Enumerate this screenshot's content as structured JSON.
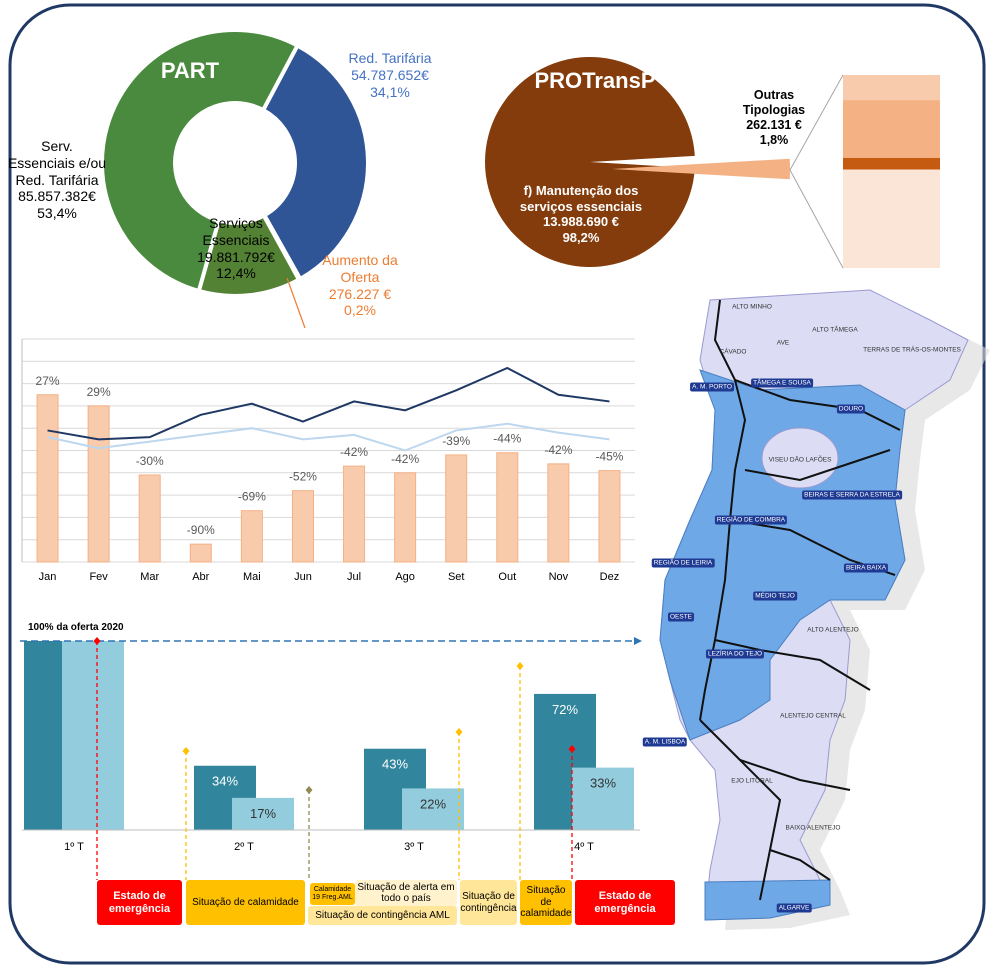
{
  "chart_data": [
    {
      "type": "donut",
      "title": "PART",
      "categories": [
        "Red. Tarifária",
        "Aumento da Oferta",
        "Serviços Essenciais",
        "Serv. Essenciais e/ou Red. Tarifária"
      ],
      "values": [
        54787652,
        276227,
        19881792,
        85857382
      ],
      "value_labels": [
        "54.787.652€",
        "276.227 €",
        "19.881.792€",
        "85.857.382€"
      ],
      "shares": [
        34.1,
        0.2,
        12.4,
        53.4
      ],
      "share_labels": [
        "34,1%",
        "0,2%",
        "12,4%",
        "53,4%"
      ],
      "colors": [
        "#2f5597",
        "#f4b183",
        "#548235",
        "#4a8a3e"
      ],
      "label_colors": [
        "#4472c4",
        "#ed7d31",
        "#000000",
        "#000000"
      ]
    },
    {
      "type": "pie",
      "title": "PROTransP",
      "categories": [
        "f) Manutenção dos serviços essenciais",
        "Outras Tipologias"
      ],
      "values": [
        13988690,
        262131
      ],
      "value_labels": [
        "13.988.690 €",
        "262.131 €"
      ],
      "shares": [
        98.2,
        1.8
      ],
      "share_labels": [
        "98,2%",
        "1,8%"
      ],
      "colors": [
        "#843c0c",
        "#f4b183"
      ],
      "breakdown": {
        "values": [
          13,
          30,
          6,
          51
        ],
        "colors": [
          "#f8cbad",
          "#f4b183",
          "#c55a11",
          "#fbe5d6"
        ]
      }
    },
    {
      "type": "bar",
      "categories": [
        "Jan",
        "Fev",
        "Mar",
        "Abr",
        "Mai",
        "Jun",
        "Jul",
        "Ago",
        "Set",
        "Out",
        "Nov",
        "Dez"
      ],
      "values": [
        75,
        70,
        39,
        8,
        23,
        32,
        43,
        40,
        48,
        49,
        44,
        41
      ],
      "color": "#f8cbad",
      "edge_color": "#f4b183",
      "changes": [
        27,
        29,
        -30,
        -90,
        -69,
        -52,
        -42,
        -42,
        -39,
        -44,
        -42,
        -45
      ],
      "change_labels": [
        "27%",
        "29%",
        "-30%",
        "-90%",
        "-69%",
        "-52%",
        "-42%",
        "-42%",
        "-39%",
        "-44%",
        "-42%",
        "-45%"
      ],
      "series": [
        {
          "color": "#1f3864",
          "values": [
            59,
            55,
            56,
            66,
            71,
            63,
            72,
            68,
            77,
            87,
            75,
            72
          ]
        },
        {
          "color": "#bdd7ee",
          "values": [
            56,
            51,
            54,
            57,
            60,
            55,
            57,
            50,
            59,
            62,
            58,
            55
          ]
        }
      ],
      "ylim": [
        0,
        100
      ],
      "yticks": [
        0,
        10,
        20,
        30,
        40,
        50,
        60,
        70,
        80,
        90,
        100
      ],
      "grid": true
    },
    {
      "type": "grouped_bar",
      "annotation": "100% da oferta 2020",
      "categories": [
        "1º T",
        "2º T",
        "3º T",
        "4º T"
      ],
      "series": [
        {
          "color": "#31859c",
          "values": [
            100,
            34,
            43,
            72
          ],
          "value_labels": [
            null,
            "34%",
            "43%",
            "72%"
          ]
        },
        {
          "color": "#93cddd",
          "values": [
            100,
            17,
            22,
            33
          ],
          "value_labels": [
            null,
            "17%",
            "22%",
            "33%"
          ]
        }
      ],
      "ylim": [
        0,
        100
      ],
      "reference": 100
    }
  ],
  "timeline": {
    "phases": [
      {
        "label": "Estado de emergência",
        "color": "#ff0000"
      },
      {
        "label": "Situação de calamidade",
        "color": "#ffc000"
      },
      {
        "label": "Calamidade 19 Freg.AML",
        "color": "#ffc000"
      },
      {
        "label": "Situação de alerta em todo o país",
        "color": "#fff2cc"
      },
      {
        "label": "Situação de contingência AML",
        "color": "#ffe699"
      },
      {
        "label": "Situação de contingência",
        "color": "#ffe699"
      },
      {
        "label": "Situação de calamidade",
        "color": "#ffc000"
      },
      {
        "label": "Estado de emergência",
        "color": "#ff0000"
      }
    ]
  },
  "map": {
    "regions": [
      {
        "label": "ALTO MINHO",
        "highlighted": false
      },
      {
        "label": "ALTO TÂMEGA",
        "highlighted": false
      },
      {
        "label": "CÁVADO",
        "highlighted": false
      },
      {
        "label": "AVE",
        "highlighted": false
      },
      {
        "label": "TERRAS DE TRÁS-OS-MONTES",
        "highlighted": false
      },
      {
        "label": "A. M. PORTO",
        "highlighted": true
      },
      {
        "label": "TÂMEGA E SOUSA",
        "highlighted": true
      },
      {
        "label": "DOURO",
        "highlighted": true
      },
      {
        "label": "VISEU DÃO LAFÕES",
        "highlighted": false
      },
      {
        "label": "BEIRAS E SERRA DA ESTRELA",
        "highlighted": true
      },
      {
        "label": "REGIÃO DE COIMBRA",
        "highlighted": true
      },
      {
        "label": "REGIÃO DE LEIRIA",
        "highlighted": true
      },
      {
        "label": "BEIRA BAIXA",
        "highlighted": true
      },
      {
        "label": "MÉDIO TEJO",
        "highlighted": true
      },
      {
        "label": "OESTE",
        "highlighted": true
      },
      {
        "label": "ALTO ALENTEJO",
        "highlighted": false
      },
      {
        "label": "LEZÍRIA DO TEJO",
        "highlighted": true
      },
      {
        "label": "A. M. LISBOA",
        "highlighted": true
      },
      {
        "label": "ALENTEJO CENTRAL",
        "highlighted": false
      },
      {
        "label": "EJO LITORAL",
        "highlighted": false
      },
      {
        "label": "BAIXO ALENTEJO",
        "highlighted": false
      },
      {
        "label": "ALGARVE",
        "highlighted": true
      }
    ]
  }
}
